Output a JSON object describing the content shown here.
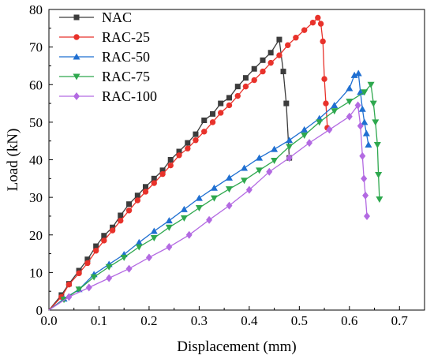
{
  "chart_data": {
    "type": "line",
    "title": "",
    "xlabel": "Displacement (mm)",
    "ylabel": "Load (kN)",
    "xlim": [
      0,
      0.75
    ],
    "ylim": [
      0,
      80
    ],
    "xticks": [
      "0.0",
      "0.1",
      "0.2",
      "0.3",
      "0.4",
      "0.5",
      "0.6",
      "0.7"
    ],
    "yticks": [
      "0",
      "10",
      "20",
      "30",
      "40",
      "50",
      "60",
      "70",
      "80"
    ],
    "grid": false,
    "legend_position": "top-left",
    "series": [
      {
        "name": "NAC",
        "color": "#3c3c3c",
        "marker": "square",
        "points": [
          [
            0,
            0
          ],
          [
            0.025,
            4
          ],
          [
            0.04,
            7
          ],
          [
            0.06,
            10.5
          ],
          [
            0.077,
            13.5
          ],
          [
            0.094,
            17
          ],
          [
            0.11,
            19.8
          ],
          [
            0.127,
            22
          ],
          [
            0.143,
            25.2
          ],
          [
            0.16,
            28.2
          ],
          [
            0.177,
            30.5
          ],
          [
            0.193,
            32.8
          ],
          [
            0.21,
            35
          ],
          [
            0.227,
            37.2
          ],
          [
            0.243,
            40
          ],
          [
            0.26,
            42.2
          ],
          [
            0.277,
            44.5
          ],
          [
            0.293,
            46.8
          ],
          [
            0.31,
            50.5
          ],
          [
            0.327,
            52.2
          ],
          [
            0.343,
            55
          ],
          [
            0.36,
            56.5
          ],
          [
            0.377,
            59.5
          ],
          [
            0.393,
            61.8
          ],
          [
            0.41,
            64.2
          ],
          [
            0.427,
            66.5
          ],
          [
            0.443,
            68.5
          ],
          [
            0.46,
            72
          ],
          [
            0.468,
            63.5
          ],
          [
            0.474,
            55
          ],
          [
            0.48,
            40.5
          ]
        ]
      },
      {
        "name": "RAC-25",
        "color": "#e8322b",
        "marker": "circle",
        "points": [
          [
            0,
            0
          ],
          [
            0.025,
            3.5
          ],
          [
            0.04,
            6.8
          ],
          [
            0.06,
            9.8
          ],
          [
            0.077,
            12.5
          ],
          [
            0.094,
            15.8
          ],
          [
            0.11,
            18.5
          ],
          [
            0.127,
            21.2
          ],
          [
            0.143,
            23.8
          ],
          [
            0.16,
            26.5
          ],
          [
            0.177,
            29.2
          ],
          [
            0.193,
            31.5
          ],
          [
            0.21,
            33.8
          ],
          [
            0.227,
            36.2
          ],
          [
            0.243,
            38.5
          ],
          [
            0.26,
            41.2
          ],
          [
            0.277,
            43
          ],
          [
            0.293,
            45.2
          ],
          [
            0.31,
            47.5
          ],
          [
            0.327,
            50
          ],
          [
            0.343,
            52.5
          ],
          [
            0.36,
            54.5
          ],
          [
            0.377,
            57
          ],
          [
            0.393,
            59.5
          ],
          [
            0.41,
            61.2
          ],
          [
            0.427,
            63.5
          ],
          [
            0.443,
            65.8
          ],
          [
            0.46,
            67.8
          ],
          [
            0.477,
            70.5
          ],
          [
            0.493,
            72.5
          ],
          [
            0.51,
            74.5
          ],
          [
            0.527,
            76.5
          ],
          [
            0.537,
            77.8
          ],
          [
            0.543,
            76.2
          ],
          [
            0.547,
            71.5
          ],
          [
            0.55,
            61.5
          ],
          [
            0.553,
            55
          ],
          [
            0.556,
            48.5
          ]
        ]
      },
      {
        "name": "RAC-50",
        "color": "#1f6fd1",
        "marker": "triangle-up",
        "points": [
          [
            0,
            0
          ],
          [
            0.03,
            3
          ],
          [
            0.06,
            5.5
          ],
          [
            0.09,
            9.5
          ],
          [
            0.12,
            12.2
          ],
          [
            0.15,
            14.8
          ],
          [
            0.18,
            18
          ],
          [
            0.21,
            21
          ],
          [
            0.24,
            23.8
          ],
          [
            0.27,
            26.8
          ],
          [
            0.3,
            29.8
          ],
          [
            0.33,
            32.5
          ],
          [
            0.36,
            35.2
          ],
          [
            0.39,
            37.8
          ],
          [
            0.42,
            40.5
          ],
          [
            0.45,
            42.8
          ],
          [
            0.48,
            45.2
          ],
          [
            0.51,
            48
          ],
          [
            0.54,
            51
          ],
          [
            0.57,
            54.5
          ],
          [
            0.6,
            59
          ],
          [
            0.61,
            62.5
          ],
          [
            0.618,
            63
          ],
          [
            0.622,
            58
          ],
          [
            0.626,
            53.5
          ],
          [
            0.63,
            50
          ],
          [
            0.634,
            47
          ],
          [
            0.638,
            44
          ]
        ]
      },
      {
        "name": "RAC-75",
        "color": "#2ea84e",
        "marker": "triangle-down",
        "points": [
          [
            0,
            0
          ],
          [
            0.03,
            2.8
          ],
          [
            0.06,
            5.5
          ],
          [
            0.09,
            8.8
          ],
          [
            0.12,
            11.5
          ],
          [
            0.15,
            14
          ],
          [
            0.18,
            16.8
          ],
          [
            0.21,
            19.2
          ],
          [
            0.24,
            22
          ],
          [
            0.27,
            24.5
          ],
          [
            0.3,
            27.2
          ],
          [
            0.33,
            29.8
          ],
          [
            0.36,
            32.2
          ],
          [
            0.39,
            34.5
          ],
          [
            0.42,
            37.2
          ],
          [
            0.45,
            39.8
          ],
          [
            0.48,
            43.5
          ],
          [
            0.51,
            46.5
          ],
          [
            0.54,
            50
          ],
          [
            0.57,
            53
          ],
          [
            0.6,
            55.5
          ],
          [
            0.63,
            58
          ],
          [
            0.643,
            60
          ],
          [
            0.648,
            55
          ],
          [
            0.652,
            50
          ],
          [
            0.656,
            44
          ],
          [
            0.658,
            36
          ],
          [
            0.66,
            29.5
          ]
        ]
      },
      {
        "name": "RAC-100",
        "color": "#b36ae2",
        "marker": "diamond",
        "points": [
          [
            0,
            0
          ],
          [
            0.04,
            3.5
          ],
          [
            0.08,
            6
          ],
          [
            0.12,
            8.5
          ],
          [
            0.16,
            11
          ],
          [
            0.2,
            14
          ],
          [
            0.24,
            16.8
          ],
          [
            0.28,
            20
          ],
          [
            0.32,
            24
          ],
          [
            0.36,
            27.8
          ],
          [
            0.4,
            32
          ],
          [
            0.44,
            36.8
          ],
          [
            0.48,
            40.5
          ],
          [
            0.52,
            44.5
          ],
          [
            0.56,
            48
          ],
          [
            0.6,
            51.5
          ],
          [
            0.617,
            54.5
          ],
          [
            0.622,
            49
          ],
          [
            0.626,
            41
          ],
          [
            0.629,
            35
          ],
          [
            0.632,
            30.5
          ],
          [
            0.635,
            25
          ]
        ]
      }
    ]
  }
}
